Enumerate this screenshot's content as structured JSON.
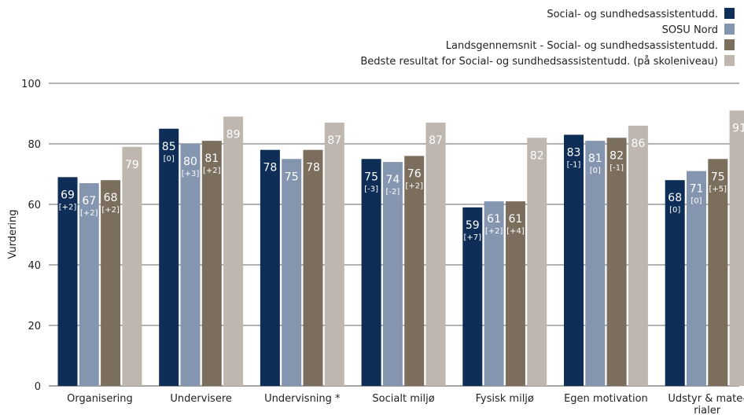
{
  "chart_data": {
    "type": "bar",
    "ylabel": "Vurdering",
    "ylim": [
      0,
      100
    ],
    "yticks": [
      0,
      20,
      40,
      60,
      80,
      100
    ],
    "grid": true,
    "legend_position": "top-right",
    "categories": [
      [
        "Organisering"
      ],
      [
        "Undervisere"
      ],
      [
        "Undervisning *"
      ],
      [
        "Socialt miljø"
      ],
      [
        "Fysisk miljø"
      ],
      [
        "Egen motivation"
      ],
      [
        "Udstyr & mate-",
        "rialer"
      ]
    ],
    "series": [
      {
        "name": "Social- og sundhedsassistentudd.",
        "color": "#0e2d57",
        "values": [
          69,
          85,
          78,
          75,
          59,
          83,
          68
        ],
        "changes": [
          "[+2]",
          "[0]",
          "",
          "[-3]",
          "[+7]",
          "[-1]",
          "[0]"
        ]
      },
      {
        "name": "SOSU Nord",
        "color": "#8496af",
        "values": [
          67,
          80,
          75,
          74,
          61,
          81,
          71
        ],
        "changes": [
          "[+2]",
          "[+3]",
          "",
          "[-2]",
          "[+2]",
          "[0]",
          "[0]"
        ]
      },
      {
        "name": "Landsgennemsnit - Social- og sundhedsassistentudd.",
        "color": "#7b6e5d",
        "values": [
          68,
          81,
          78,
          76,
          61,
          82,
          75
        ],
        "changes": [
          "[+2]",
          "[+2]",
          "",
          "[+2]",
          "[+4]",
          "[-1]",
          "[+5]"
        ]
      },
      {
        "name": "Bedste resultat for Social- og sundhedsassistentudd. (på skoleniveau)",
        "color": "#bdb7af",
        "values": [
          79,
          89,
          87,
          87,
          82,
          86,
          91
        ],
        "changes": [
          "",
          "",
          "",
          "",
          "",
          "",
          ""
        ]
      }
    ]
  }
}
